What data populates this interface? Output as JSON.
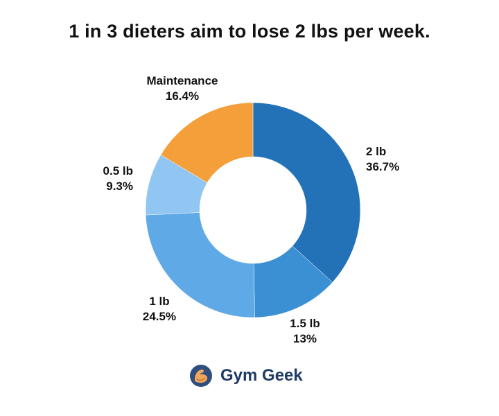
{
  "title": "1 in 3 dieters aim to lose 2 lbs per week.",
  "brand": {
    "name": "Gym Geek",
    "icon": "flexing-arm-logo-icon"
  },
  "chart_data": {
    "type": "pie",
    "subtype": "donut",
    "title": "1 in 3 dieters aim to lose 2 lbs per week.",
    "slices": [
      {
        "label": "2 lb",
        "value_label": "36.7%",
        "value": 36.7,
        "color": "#2372b8"
      },
      {
        "label": "1.5 lb",
        "value_label": "13%",
        "value": 13.0,
        "color": "#3b8fd3"
      },
      {
        "label": "1 lb",
        "value_label": "24.5%",
        "value": 24.5,
        "color": "#5fa9e6"
      },
      {
        "label": "0.5 lb",
        "value_label": "9.3%",
        "value": 9.3,
        "color": "#90c6f1"
      },
      {
        "label": "Maintenance",
        "value_label": "16.4%",
        "value": 16.4,
        "color": "#f49f3a"
      }
    ]
  }
}
